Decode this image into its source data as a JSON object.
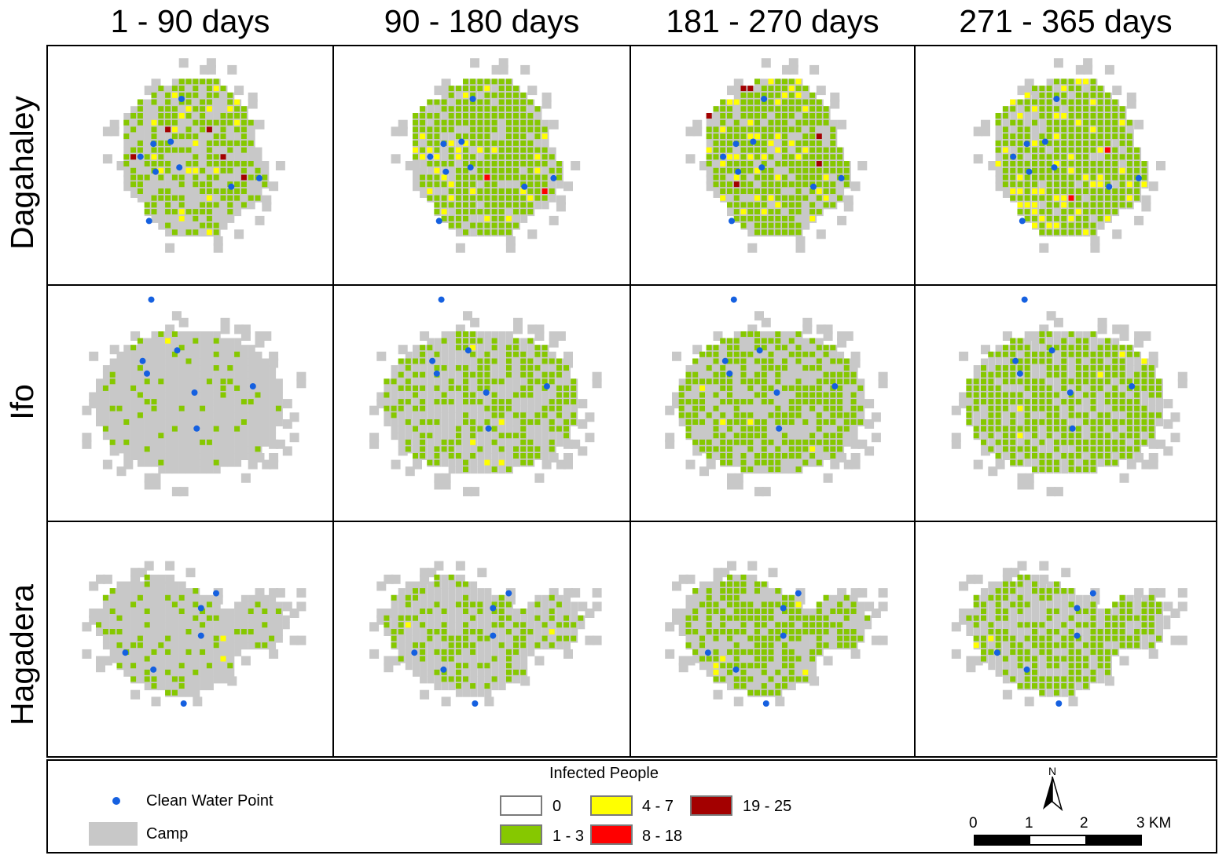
{
  "columns": [
    "1 - 90 days",
    "90 - 180 days",
    "181 - 270 days",
    "271 - 365 days"
  ],
  "rows": [
    "Dagahaley",
    "Ifo",
    "Hagadera"
  ],
  "colors": {
    "camp": "#c8c8c8",
    "water_point": "#1560e0",
    "class_0": "#ffffff",
    "class_1_3": "#86c800",
    "class_4_7": "#ffff00",
    "class_8_18": "#ff0000",
    "class_19_25": "#a30000"
  },
  "legend": {
    "title": "Infected People",
    "water_point_label": "Clean Water Point",
    "camp_label": "Camp",
    "classes": [
      {
        "label": "0",
        "color": "#ffffff"
      },
      {
        "label": "1 - 3",
        "color": "#86c800"
      },
      {
        "label": "4 - 7",
        "color": "#ffff00"
      },
      {
        "label": "8 - 18",
        "color": "#ff0000"
      },
      {
        "label": "19 - 25",
        "color": "#a30000"
      }
    ]
  },
  "north_arrow": {
    "label": "N"
  },
  "scale_bar": {
    "ticks": [
      "0",
      "1",
      "2",
      "3 KM"
    ]
  },
  "infection_coverage": [
    [
      0.55,
      0.85,
      0.85,
      0.9
    ],
    [
      0.12,
      0.45,
      0.6,
      0.72
    ],
    [
      0.22,
      0.4,
      0.55,
      0.6
    ]
  ]
}
